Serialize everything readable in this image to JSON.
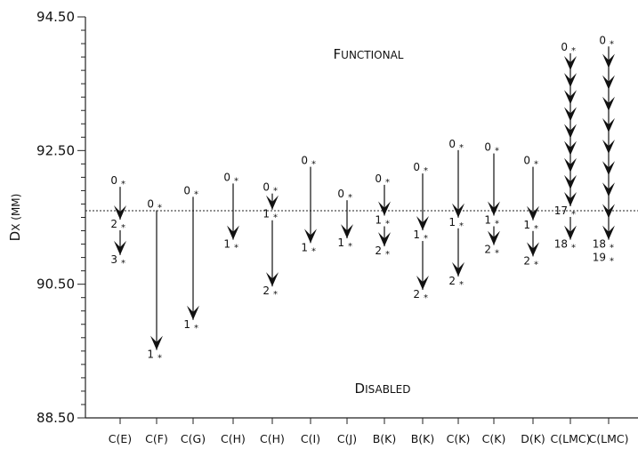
{
  "chart_data": {
    "type": "arrow",
    "ylabel": {
      "lead": "D",
      "rest": "X (MM)"
    },
    "ylim": [
      88.5,
      94.5
    ],
    "yticks": [
      "94.50",
      "92.50",
      "90.50",
      "88.50"
    ],
    "threshold": 91.6,
    "regions": {
      "top": {
        "lead": "F",
        "rest": "UNCTIONAL"
      },
      "bottom": {
        "lead": "D",
        "rest": "ISABLED"
      }
    },
    "categories": [
      "C(E)",
      "C(F)",
      "C(G)",
      "C(H)",
      "C(H)",
      "C(I)",
      "C(J)",
      "B(K)",
      "B(K)",
      "C(K)",
      "C(K)",
      "D(K)",
      "C(LMC)",
      "C(LMC)"
    ],
    "series": [
      {
        "points": [
          {
            "label": "0",
            "y": 92.05
          },
          {
            "label": "2",
            "y": 91.4
          },
          {
            "label": "3",
            "y": 90.87
          }
        ],
        "arrows": [
          [
            92.05,
            91.4,
            1
          ],
          [
            91.4,
            90.87,
            1
          ]
        ]
      },
      {
        "points": [
          {
            "label": "0",
            "y": 91.7
          },
          {
            "label": "1",
            "y": 89.45
          }
        ],
        "arrows": [
          [
            91.7,
            89.45,
            1
          ]
        ]
      },
      {
        "points": [
          {
            "label": "0",
            "y": 91.9
          },
          {
            "label": "1",
            "y": 89.9
          }
        ],
        "arrows": [
          [
            91.9,
            89.9,
            1
          ]
        ]
      },
      {
        "points": [
          {
            "label": "0",
            "y": 92.1
          },
          {
            "label": "1",
            "y": 91.1
          }
        ],
        "arrows": [
          [
            92.1,
            91.1,
            1
          ]
        ]
      },
      {
        "points": [
          {
            "label": "0",
            "y": 91.95
          },
          {
            "label": "1",
            "y": 91.55
          },
          {
            "label": "2",
            "y": 90.4
          }
        ],
        "arrows": [
          [
            91.95,
            91.55,
            1
          ],
          [
            91.55,
            90.4,
            1
          ]
        ]
      },
      {
        "points": [
          {
            "label": "0",
            "y": 92.35
          },
          {
            "label": "1",
            "y": 91.05
          }
        ],
        "arrows": [
          [
            92.35,
            91.05,
            1
          ]
        ]
      },
      {
        "points": [
          {
            "label": "0",
            "y": 91.85
          },
          {
            "label": "1",
            "y": 91.12
          }
        ],
        "arrows": [
          [
            91.85,
            91.12,
            1
          ]
        ]
      },
      {
        "points": [
          {
            "label": "0",
            "y": 92.08
          },
          {
            "label": "1",
            "y": 91.46
          },
          {
            "label": "2",
            "y": 91.0
          }
        ],
        "arrows": [
          [
            92.08,
            91.46,
            1
          ],
          [
            91.46,
            91.0,
            1
          ]
        ]
      },
      {
        "points": [
          {
            "label": "0",
            "y": 92.25
          },
          {
            "label": "1",
            "y": 91.24
          },
          {
            "label": "2",
            "y": 90.35
          }
        ],
        "arrows": [
          [
            92.25,
            91.24,
            1
          ],
          [
            91.24,
            90.35,
            1
          ]
        ]
      },
      {
        "points": [
          {
            "label": "0",
            "y": 92.6
          },
          {
            "label": "1",
            "y": 91.43
          },
          {
            "label": "2",
            "y": 90.55
          }
        ],
        "arrows": [
          [
            92.6,
            91.43,
            1
          ],
          [
            91.43,
            90.55,
            1
          ]
        ]
      },
      {
        "points": [
          {
            "label": "0",
            "y": 92.55
          },
          {
            "label": "1",
            "y": 91.46
          },
          {
            "label": "2",
            "y": 91.02
          }
        ],
        "arrows": [
          [
            92.55,
            91.46,
            1
          ],
          [
            91.46,
            91.02,
            1
          ]
        ]
      },
      {
        "points": [
          {
            "label": "0",
            "y": 92.35
          },
          {
            "label": "1",
            "y": 91.39
          },
          {
            "label": "2",
            "y": 90.85
          }
        ],
        "arrows": [
          [
            92.35,
            91.39,
            1
          ],
          [
            91.39,
            90.85,
            1
          ]
        ]
      },
      {
        "points": [
          {
            "label": "0",
            "y": 94.05
          },
          {
            "label": "17",
            "y": 91.6
          },
          {
            "label": "18",
            "y": 91.1
          }
        ],
        "arrows": [
          [
            94.05,
            91.6,
            9
          ],
          [
            91.6,
            91.1,
            1
          ]
        ]
      },
      {
        "points": [
          {
            "label": "0",
            "y": 94.15
          },
          {
            "label": "18",
            "y": 91.1
          },
          {
            "label": "19",
            "y": 90.9
          }
        ],
        "arrows": [
          [
            94.15,
            91.1,
            9
          ]
        ]
      }
    ]
  }
}
